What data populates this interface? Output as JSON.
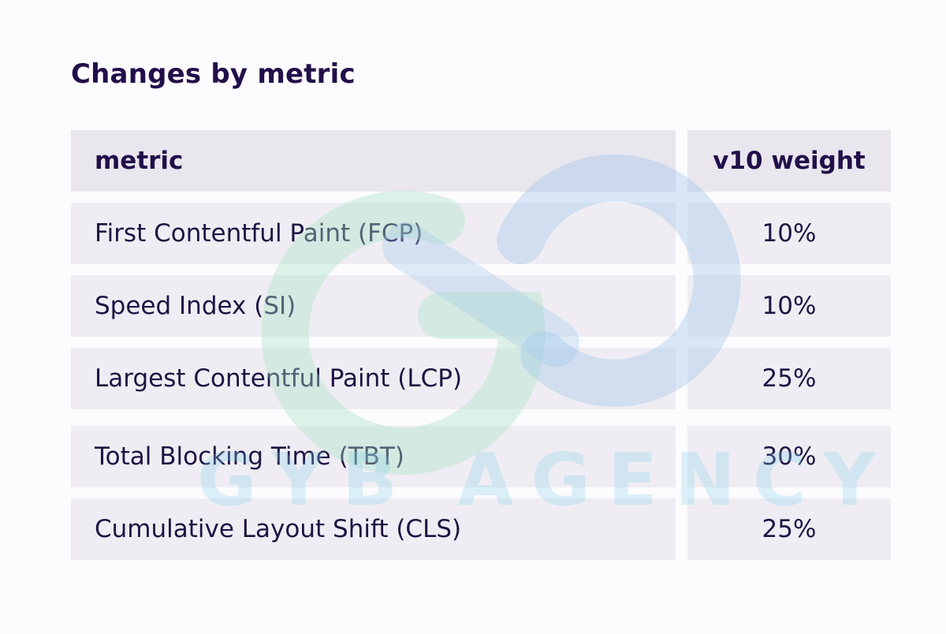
{
  "title": "Changes by metric",
  "table": {
    "headers": {
      "metric": "metric",
      "weight": "v10 weight"
    },
    "rows": [
      {
        "metric": "First Contentful Paint (FCP)",
        "weight": "10%"
      },
      {
        "metric": "Speed Index (SI)",
        "weight": "10%"
      },
      {
        "metric": "Largest Contentful Paint (LCP)",
        "weight": "25%"
      },
      {
        "metric": "Total Blocking Time (TBT)",
        "weight": "30%"
      },
      {
        "metric": "Cumulative Layout Shift (CLS)",
        "weight": "25%"
      }
    ]
  },
  "watermark": {
    "text": "GYB AGENCY",
    "colors": {
      "green": "#a7e3c6",
      "blue": "#9fc6ea"
    }
  }
}
